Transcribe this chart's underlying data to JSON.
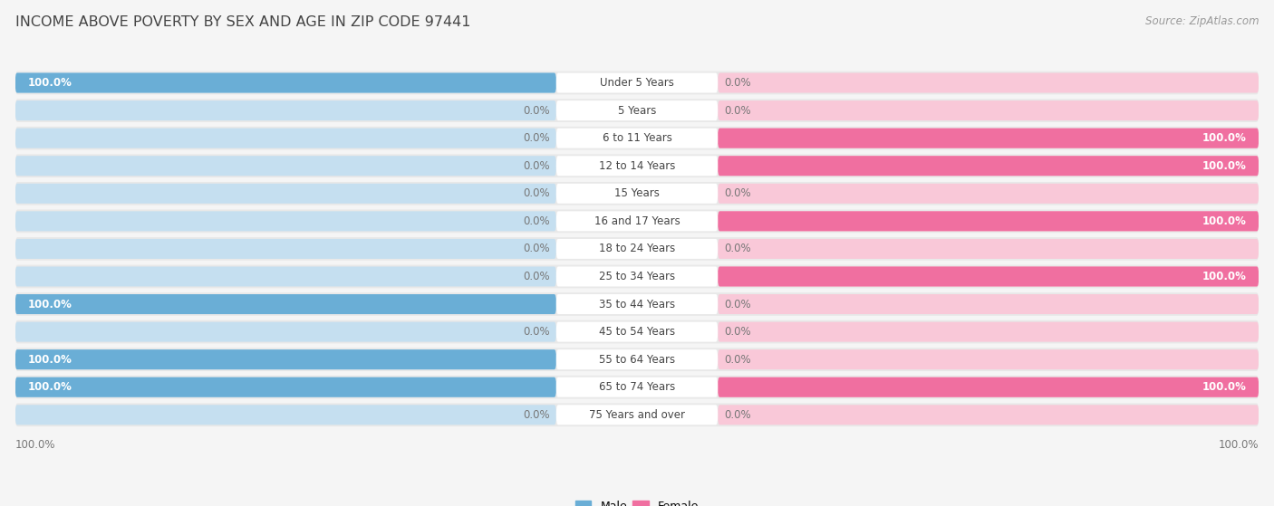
{
  "title": "INCOME ABOVE POVERTY BY SEX AND AGE IN ZIP CODE 97441",
  "source": "Source: ZipAtlas.com",
  "categories": [
    "Under 5 Years",
    "5 Years",
    "6 to 11 Years",
    "12 to 14 Years",
    "15 Years",
    "16 and 17 Years",
    "18 to 24 Years",
    "25 to 34 Years",
    "35 to 44 Years",
    "45 to 54 Years",
    "55 to 64 Years",
    "65 to 74 Years",
    "75 Years and over"
  ],
  "male_values": [
    100.0,
    0.0,
    0.0,
    0.0,
    0.0,
    0.0,
    0.0,
    0.0,
    100.0,
    0.0,
    100.0,
    100.0,
    0.0
  ],
  "female_values": [
    0.0,
    0.0,
    100.0,
    100.0,
    0.0,
    100.0,
    0.0,
    100.0,
    0.0,
    0.0,
    0.0,
    100.0,
    0.0
  ],
  "male_color": "#6aaed6",
  "female_color": "#f06fa0",
  "bar_bg_male": "#c5dff0",
  "bar_bg_female": "#f9c8d8",
  "row_bg": "#e8e8e8",
  "row_gap_color": "#f5f5f5",
  "bg_color": "#f5f5f5",
  "label_box_color": "#ffffff",
  "value_color_inside": "#ffffff",
  "value_color_outside": "#777777",
  "title_color": "#444444",
  "source_color": "#999999",
  "title_fontsize": 11.5,
  "source_fontsize": 8.5,
  "cat_fontsize": 8.5,
  "val_fontsize": 8.5,
  "axis_tick_fontsize": 8.5
}
